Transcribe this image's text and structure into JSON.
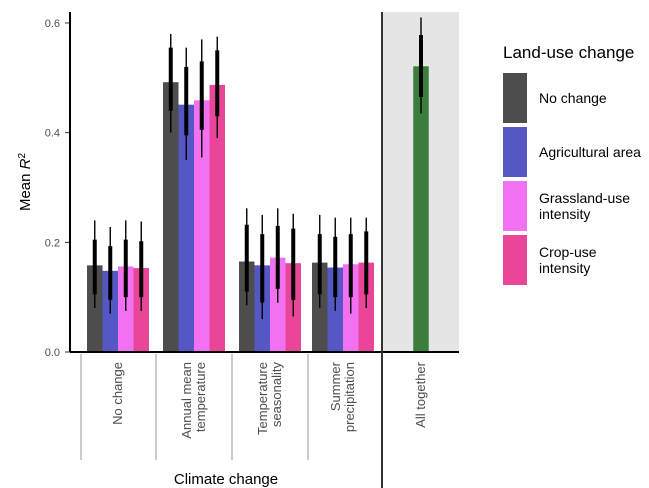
{
  "chart_data": {
    "type": "bar",
    "ylabel_prefix": "Mean ",
    "ylabel_var": "R",
    "ylabel_sup": "2",
    "xlabel": "Climate change",
    "ylim": [
      0,
      0.62
    ],
    "yticks": [
      "0.0",
      "0.2",
      "0.4",
      "0.6"
    ],
    "legend": {
      "title": "Land-use change",
      "position": "right",
      "entries": [
        {
          "label": "No change",
          "color": "#4d4d4d"
        },
        {
          "label": "Agricultural area",
          "color": "#5457c4"
        },
        {
          "label": "Grassland-use intensity",
          "color": "#f171f0"
        },
        {
          "label": "Crop-use intensity",
          "color": "#e9469a"
        }
      ]
    },
    "categories": [
      "No change",
      "Annual mean temperature",
      "Temperature seasonality",
      "Summer precipitation",
      "All together"
    ],
    "groups": [
      {
        "category": "No change",
        "bars": [
          {
            "series": "No change",
            "value": 0.158,
            "inner": [
              0.105,
              0.205
            ],
            "outer": [
              0.08,
              0.24
            ]
          },
          {
            "series": "Agricultural area",
            "value": 0.148,
            "inner": [
              0.095,
              0.193
            ],
            "outer": [
              0.07,
              0.228
            ]
          },
          {
            "series": "Grassland-use intensity",
            "value": 0.156,
            "inner": [
              0.1,
              0.205
            ],
            "outer": [
              0.075,
              0.24
            ]
          },
          {
            "series": "Crop-use intensity",
            "value": 0.153,
            "inner": [
              0.1,
              0.202
            ],
            "outer": [
              0.075,
              0.238
            ]
          }
        ]
      },
      {
        "category": "Annual mean temperature",
        "bars": [
          {
            "series": "No change",
            "value": 0.492,
            "inner": [
              0.44,
              0.555
            ],
            "outer": [
              0.4,
              0.58
            ]
          },
          {
            "series": "Agricultural area",
            "value": 0.451,
            "inner": [
              0.395,
              0.52
            ],
            "outer": [
              0.35,
              0.555
            ]
          },
          {
            "series": "Grassland-use intensity",
            "value": 0.459,
            "inner": [
              0.405,
              0.53
            ],
            "outer": [
              0.355,
              0.57
            ]
          },
          {
            "series": "Crop-use intensity",
            "value": 0.487,
            "inner": [
              0.43,
              0.55
            ],
            "outer": [
              0.39,
              0.575
            ]
          }
        ]
      },
      {
        "category": "Temperature seasonality",
        "bars": [
          {
            "series": "No change",
            "value": 0.165,
            "inner": [
              0.11,
              0.232
            ],
            "outer": [
              0.085,
              0.262
            ]
          },
          {
            "series": "Agricultural area",
            "value": 0.158,
            "inner": [
              0.09,
              0.215
            ],
            "outer": [
              0.06,
              0.25
            ]
          },
          {
            "series": "Grassland-use intensity",
            "value": 0.172,
            "inner": [
              0.115,
              0.23
            ],
            "outer": [
              0.09,
              0.262
            ]
          },
          {
            "series": "Crop-use intensity",
            "value": 0.162,
            "inner": [
              0.095,
              0.225
            ],
            "outer": [
              0.065,
              0.252
            ]
          }
        ]
      },
      {
        "category": "Summer precipitation",
        "bars": [
          {
            "series": "No change",
            "value": 0.163,
            "inner": [
              0.105,
              0.215
            ],
            "outer": [
              0.08,
              0.25
            ]
          },
          {
            "series": "Agricultural area",
            "value": 0.154,
            "inner": [
              0.1,
              0.21
            ],
            "outer": [
              0.075,
              0.245
            ]
          },
          {
            "series": "Grassland-use intensity",
            "value": 0.16,
            "inner": [
              0.1,
              0.215
            ],
            "outer": [
              0.07,
              0.245
            ]
          },
          {
            "series": "Crop-use intensity",
            "value": 0.163,
            "inner": [
              0.105,
              0.22
            ],
            "outer": [
              0.08,
              0.245
            ]
          }
        ]
      },
      {
        "category": "All together",
        "bars": [
          {
            "series": "All together",
            "value": 0.521,
            "inner": [
              0.465,
              0.578
            ],
            "outer": [
              0.435,
              0.61
            ],
            "color": "#3b7d3b"
          }
        ]
      }
    ],
    "highlight_panel": {
      "category": "All together",
      "color": "#e5e5e5"
    }
  }
}
